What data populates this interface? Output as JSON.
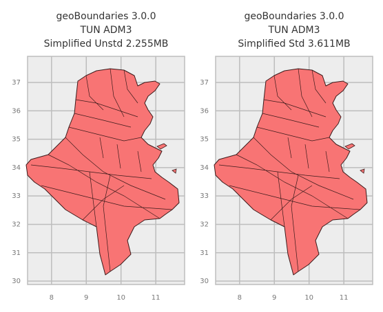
{
  "chart_data": [
    {
      "type": "map",
      "title": [
        "geoBoundaries 3.0.0",
        "TUN ADM3",
        "Simplified Unstd 2.255MB"
      ],
      "xlim": [
        7.31,
        11.83
      ],
      "ylim": [
        29.88,
        37.92
      ],
      "xticks": [
        8,
        9,
        10,
        11
      ],
      "yticks": [
        30,
        31,
        32,
        33,
        34,
        35,
        36,
        37
      ],
      "grid": true,
      "color": "#f87474"
    },
    {
      "type": "map",
      "title": [
        "geoBoundaries 3.0.0",
        "TUN ADM3",
        "Simplified Std 3.611MB"
      ],
      "xlim": [
        7.31,
        11.83
      ],
      "ylim": [
        29.88,
        37.92
      ],
      "xticks": [
        8,
        9,
        10,
        11
      ],
      "yticks": [
        30,
        31,
        32,
        33,
        34,
        35,
        36,
        37
      ],
      "grid": true,
      "color": "#f87474"
    }
  ]
}
